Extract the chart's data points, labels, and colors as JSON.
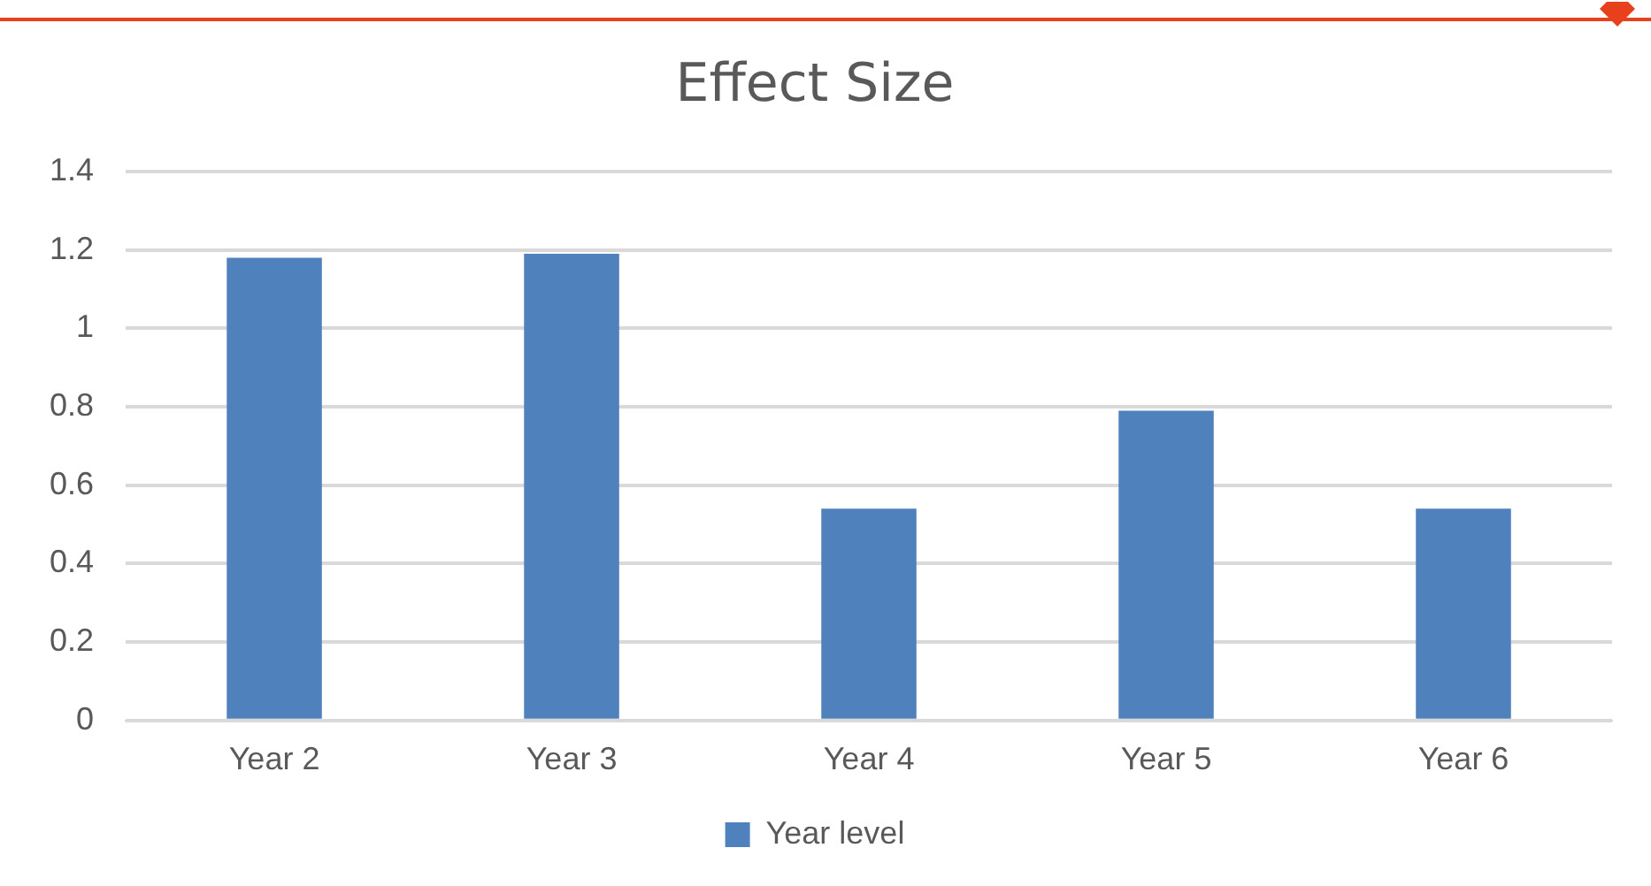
{
  "chart_data": {
    "type": "bar",
    "title": "Effect Size",
    "categories": [
      "Year 2",
      "Year 3",
      "Year 4",
      "Year 5",
      "Year 6"
    ],
    "series": [
      {
        "name": "Year level",
        "color": "#4f81bd",
        "values": [
          1.18,
          1.19,
          0.54,
          0.79,
          0.54
        ]
      }
    ],
    "ylim": [
      0,
      1.4
    ],
    "yticks": [
      0,
      0.2,
      0.4,
      0.6,
      0.8,
      1,
      1.2,
      1.4
    ],
    "grid": "y",
    "legend": "bottom"
  }
}
